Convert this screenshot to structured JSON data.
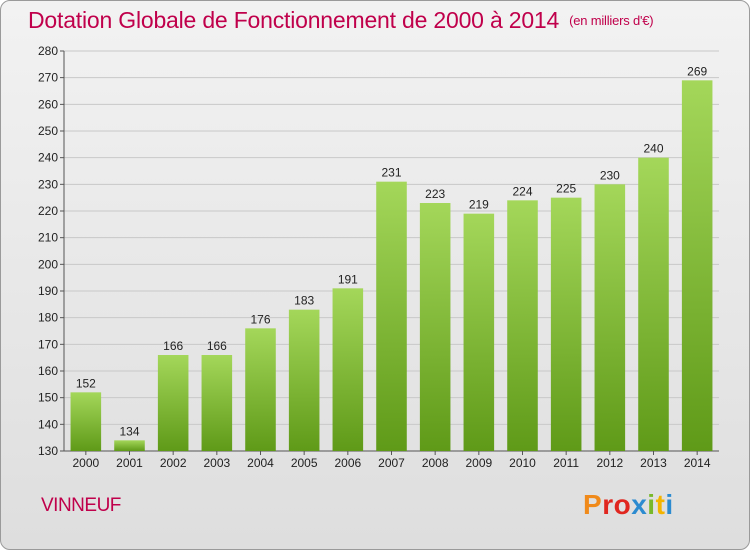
{
  "header": {
    "title": "Dotation Globale de Fonctionnement de 2000 à 2014",
    "unit": "(en milliers d'€)"
  },
  "commune": "VINNEUF",
  "logo": {
    "text": "Proxiti",
    "colors": [
      "#f08a1a",
      "#e0261f",
      "#2c8bd0",
      "#79b82a",
      "#f4b400"
    ]
  },
  "chart_data": {
    "type": "bar",
    "title": "Dotation Globale de Fonctionnement de 2000 à 2014",
    "subtitle": "(en milliers d'€)",
    "xlabel": "",
    "ylabel": "",
    "categories": [
      "2000",
      "2001",
      "2002",
      "2003",
      "2004",
      "2005",
      "2006",
      "2007",
      "2008",
      "2009",
      "2010",
      "2011",
      "2012",
      "2013",
      "2014"
    ],
    "values": [
      152,
      134,
      166,
      166,
      176,
      183,
      191,
      231,
      223,
      219,
      224,
      225,
      230,
      240,
      269
    ],
    "ylim": [
      130,
      280
    ],
    "yticks": [
      130,
      140,
      150,
      160,
      170,
      180,
      190,
      200,
      210,
      220,
      230,
      240,
      250,
      260,
      270,
      280
    ],
    "grid": true,
    "bar_color": "#7cbd2f"
  }
}
